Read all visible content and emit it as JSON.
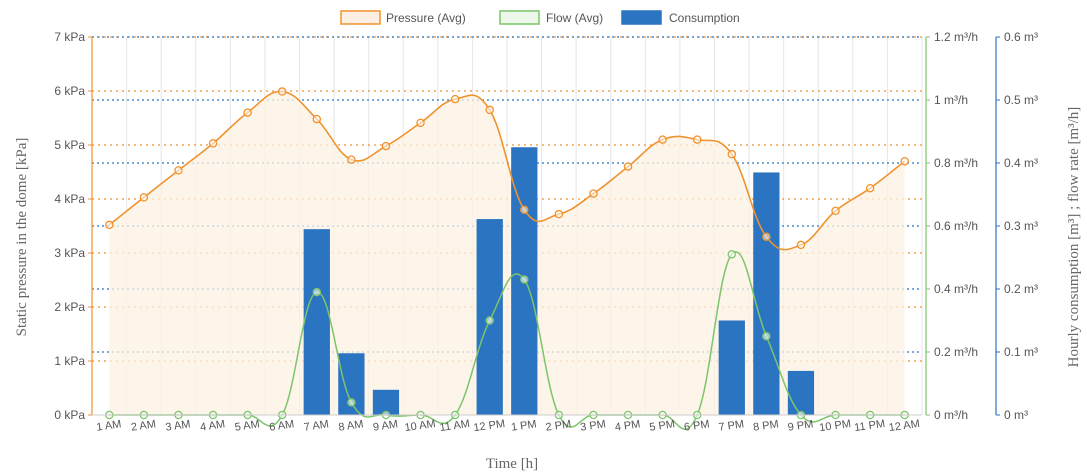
{
  "chart_data": {
    "type": "bar+line",
    "legend": {
      "position": "top-center",
      "items": [
        {
          "label": "Pressure (Avg)",
          "color": "#f0922e",
          "kind": "line"
        },
        {
          "label": "Flow (Avg)",
          "color": "#7cc56a",
          "kind": "line"
        },
        {
          "label": "Consumption",
          "color": "#2a74c2",
          "kind": "bar"
        }
      ]
    },
    "categories": [
      "1 AM",
      "2 AM",
      "3 AM",
      "4 AM",
      "5 AM",
      "6 AM",
      "7 AM",
      "8 AM",
      "9 AM",
      "10 AM",
      "11 AM",
      "12 PM",
      "1 PM",
      "2 PM",
      "3 PM",
      "4 PM",
      "5 PM",
      "6 PM",
      "7 PM",
      "8 PM",
      "9 PM",
      "10 PM",
      "11 PM",
      "12 AM"
    ],
    "xlabel": "Time [h]",
    "ylabel_left": "Static pressure in the dome [kPa]",
    "ylabel_right": "Hourly consumption [m³] ; flow rate [m³/h]",
    "axes": {
      "pressure": {
        "min": 0,
        "max": 7,
        "ticks": [
          "0 kPa",
          "1 kPa",
          "2 kPa",
          "3 kPa",
          "4 kPa",
          "5 kPa",
          "6 kPa",
          "7 kPa"
        ],
        "color": "#f0922e"
      },
      "flow": {
        "min": 0,
        "max": 1.2,
        "ticks": [
          "0 m³/h",
          "0.2 m³/h",
          "0.4 m³/h",
          "0.6 m³/h",
          "0.8 m³/h",
          "1 m³/h",
          "1.2 m³/h"
        ],
        "color": "#7cc56a"
      },
      "consumption": {
        "min": 0,
        "max": 0.6,
        "ticks": [
          "0 m³",
          "0.1 m³",
          "0.2 m³",
          "0.3 m³",
          "0.4 m³",
          "0.5 m³",
          "0.6 m³"
        ],
        "color": "#2a74c2"
      }
    },
    "series": [
      {
        "name": "Pressure (Avg)",
        "axis": "pressure",
        "type": "line",
        "values": [
          3.52,
          4.03,
          4.53,
          5.03,
          5.6,
          5.99,
          5.48,
          4.73,
          4.98,
          5.41,
          5.85,
          5.65,
          3.8,
          3.72,
          4.1,
          4.6,
          5.1,
          5.1,
          4.83,
          3.3,
          3.15,
          3.78,
          4.2,
          4.7
        ]
      },
      {
        "name": "Flow (Avg)",
        "axis": "flow",
        "type": "line",
        "values": [
          0,
          0,
          0,
          0,
          0,
          0,
          0.39,
          0.04,
          0,
          0,
          0,
          0.3,
          0.43,
          0,
          0,
          0,
          0,
          0,
          0.51,
          0.25,
          0,
          0,
          0,
          0
        ]
      },
      {
        "name": "Consumption",
        "axis": "consumption",
        "type": "bar",
        "values": [
          0,
          0,
          0,
          0,
          0,
          0,
          0.295,
          0.098,
          0.04,
          0,
          0,
          0.311,
          0.425,
          0,
          0,
          0,
          0,
          0,
          0.15,
          0.385,
          0.07,
          0,
          0,
          0
        ]
      }
    ],
    "grid": true
  }
}
